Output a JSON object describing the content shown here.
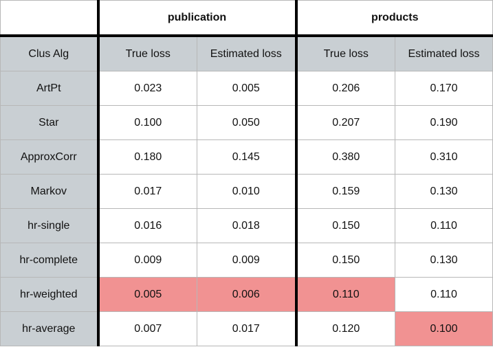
{
  "groups": [
    "",
    "publication",
    "products"
  ],
  "headers": [
    "Clus Alg",
    "True loss",
    "Estimated loss",
    "True loss",
    "Estimated loss"
  ],
  "rows": [
    {
      "alg": "ArtPt",
      "values": [
        "0.023",
        "0.005",
        "0.206",
        "0.170"
      ],
      "best": [
        false,
        false,
        false,
        false
      ]
    },
    {
      "alg": "Star",
      "values": [
        "0.100",
        "0.050",
        "0.207",
        "0.190"
      ],
      "best": [
        false,
        false,
        false,
        false
      ]
    },
    {
      "alg": "ApproxCorr",
      "values": [
        "0.180",
        "0.145",
        "0.380",
        "0.310"
      ],
      "best": [
        false,
        false,
        false,
        false
      ]
    },
    {
      "alg": "Markov",
      "values": [
        "0.017",
        "0.010",
        "0.159",
        "0.130"
      ],
      "best": [
        false,
        false,
        false,
        false
      ]
    },
    {
      "alg": "hr-single",
      "values": [
        "0.016",
        "0.018",
        "0.150",
        "0.110"
      ],
      "best": [
        false,
        false,
        false,
        false
      ]
    },
    {
      "alg": "hr-complete",
      "values": [
        "0.009",
        "0.009",
        "0.150",
        "0.130"
      ],
      "best": [
        false,
        false,
        false,
        false
      ]
    },
    {
      "alg": "hr-weighted",
      "values": [
        "0.005",
        "0.006",
        "0.110",
        "0.110"
      ],
      "best": [
        true,
        true,
        true,
        false
      ]
    },
    {
      "alg": "hr-average",
      "values": [
        "0.007",
        "0.017",
        "0.120",
        "0.100"
      ],
      "best": [
        false,
        false,
        false,
        true
      ]
    }
  ],
  "colors": {
    "header_bg": "#c9cfd3",
    "highlight": "#f19292",
    "separator": "#000000"
  }
}
